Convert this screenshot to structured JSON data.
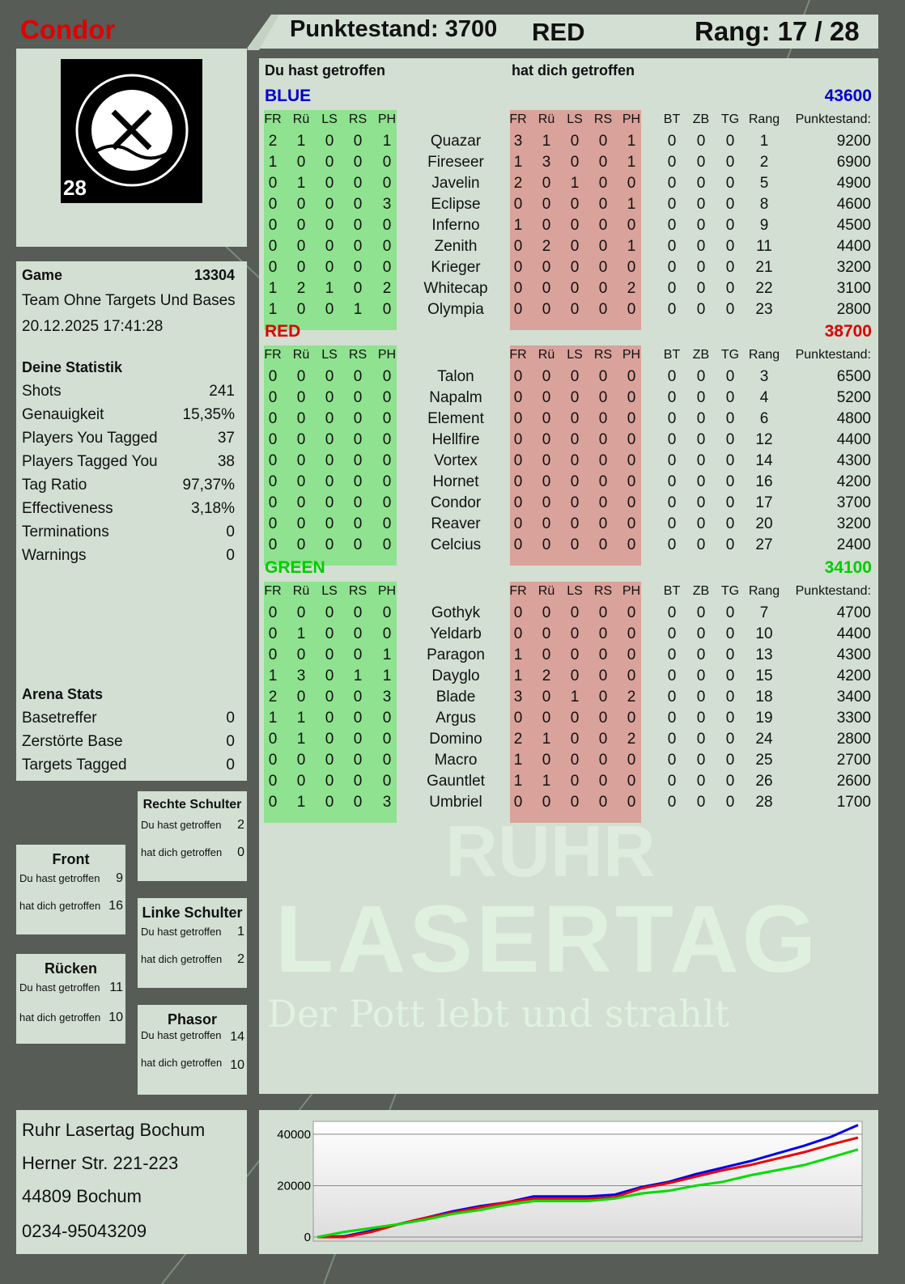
{
  "player": {
    "name": "Condor",
    "score_label": "Punktestand: 3700",
    "team": "RED",
    "rank_label": "Rang: 17 / 28",
    "logo_text": "RUHR LASERTAG",
    "logo_number": "28"
  },
  "colors": {
    "blue": "#0000cc",
    "red": "#dd0000",
    "green": "#00cc00",
    "hit_you": "#8fe28f",
    "hit_by": "#d9a29a"
  },
  "main": {
    "you_hit_label": "Du hast getroffen",
    "hit_you_label": "hat dich getroffen",
    "columns": {
      "fr": "FR",
      "ru": "Rü",
      "ls": "LS",
      "rs": "RS",
      "ph": "PH",
      "bt": "BT",
      "zb": "ZB",
      "tg": "TG",
      "rang": "Rang",
      "points": "Punktestand:"
    },
    "teams": [
      {
        "name": "BLUE",
        "color": "#0000cc",
        "total": "43600",
        "players": [
          [
            "Quazar",
            [
              2,
              1,
              0,
              0,
              1
            ],
            [
              3,
              1,
              0,
              0,
              1
            ],
            [
              0,
              0,
              0
            ],
            1,
            9200
          ],
          [
            "Fireseer",
            [
              1,
              0,
              0,
              0,
              0
            ],
            [
              1,
              3,
              0,
              0,
              1
            ],
            [
              0,
              0,
              0
            ],
            2,
            6900
          ],
          [
            "Javelin",
            [
              0,
              1,
              0,
              0,
              0
            ],
            [
              2,
              0,
              1,
              0,
              0
            ],
            [
              0,
              0,
              0
            ],
            5,
            4900
          ],
          [
            "Eclipse",
            [
              0,
              0,
              0,
              0,
              3
            ],
            [
              0,
              0,
              0,
              0,
              1
            ],
            [
              0,
              0,
              0
            ],
            8,
            4600
          ],
          [
            "Inferno",
            [
              0,
              0,
              0,
              0,
              0
            ],
            [
              1,
              0,
              0,
              0,
              0
            ],
            [
              0,
              0,
              0
            ],
            9,
            4500
          ],
          [
            "Zenith",
            [
              0,
              0,
              0,
              0,
              0
            ],
            [
              0,
              2,
              0,
              0,
              1
            ],
            [
              0,
              0,
              0
            ],
            11,
            4400
          ],
          [
            "Krieger",
            [
              0,
              0,
              0,
              0,
              0
            ],
            [
              0,
              0,
              0,
              0,
              0
            ],
            [
              0,
              0,
              0
            ],
            21,
            3200
          ],
          [
            "Whitecap",
            [
              1,
              2,
              1,
              0,
              2
            ],
            [
              0,
              0,
              0,
              0,
              2
            ],
            [
              0,
              0,
              0
            ],
            22,
            3100
          ],
          [
            "Olympia",
            [
              1,
              0,
              0,
              1,
              0
            ],
            [
              0,
              0,
              0,
              0,
              0
            ],
            [
              0,
              0,
              0
            ],
            23,
            2800
          ]
        ]
      },
      {
        "name": "RED",
        "color": "#dd0000",
        "total": "38700",
        "players": [
          [
            "Talon",
            [
              0,
              0,
              0,
              0,
              0
            ],
            [
              0,
              0,
              0,
              0,
              0
            ],
            [
              0,
              0,
              0
            ],
            3,
            6500
          ],
          [
            "Napalm",
            [
              0,
              0,
              0,
              0,
              0
            ],
            [
              0,
              0,
              0,
              0,
              0
            ],
            [
              0,
              0,
              0
            ],
            4,
            5200
          ],
          [
            "Element",
            [
              0,
              0,
              0,
              0,
              0
            ],
            [
              0,
              0,
              0,
              0,
              0
            ],
            [
              0,
              0,
              0
            ],
            6,
            4800
          ],
          [
            "Hellfire",
            [
              0,
              0,
              0,
              0,
              0
            ],
            [
              0,
              0,
              0,
              0,
              0
            ],
            [
              0,
              0,
              0
            ],
            12,
            4400
          ],
          [
            "Vortex",
            [
              0,
              0,
              0,
              0,
              0
            ],
            [
              0,
              0,
              0,
              0,
              0
            ],
            [
              0,
              0,
              0
            ],
            14,
            4300
          ],
          [
            "Hornet",
            [
              0,
              0,
              0,
              0,
              0
            ],
            [
              0,
              0,
              0,
              0,
              0
            ],
            [
              0,
              0,
              0
            ],
            16,
            4200
          ],
          [
            "Condor",
            [
              0,
              0,
              0,
              0,
              0
            ],
            [
              0,
              0,
              0,
              0,
              0
            ],
            [
              0,
              0,
              0
            ],
            17,
            3700
          ],
          [
            "Reaver",
            [
              0,
              0,
              0,
              0,
              0
            ],
            [
              0,
              0,
              0,
              0,
              0
            ],
            [
              0,
              0,
              0
            ],
            20,
            3200
          ],
          [
            "Celcius",
            [
              0,
              0,
              0,
              0,
              0
            ],
            [
              0,
              0,
              0,
              0,
              0
            ],
            [
              0,
              0,
              0
            ],
            27,
            2400
          ]
        ]
      },
      {
        "name": "GREEN",
        "color": "#00cc00",
        "total": "34100",
        "players": [
          [
            "Gothyk",
            [
              0,
              0,
              0,
              0,
              0
            ],
            [
              0,
              0,
              0,
              0,
              0
            ],
            [
              0,
              0,
              0
            ],
            7,
            4700
          ],
          [
            "Yeldarb",
            [
              0,
              1,
              0,
              0,
              0
            ],
            [
              0,
              0,
              0,
              0,
              0
            ],
            [
              0,
              0,
              0
            ],
            10,
            4400
          ],
          [
            "Paragon",
            [
              0,
              0,
              0,
              0,
              1
            ],
            [
              1,
              0,
              0,
              0,
              0
            ],
            [
              0,
              0,
              0
            ],
            13,
            4300
          ],
          [
            "Dayglo",
            [
              1,
              3,
              0,
              1,
              1
            ],
            [
              1,
              2,
              0,
              0,
              0
            ],
            [
              0,
              0,
              0
            ],
            15,
            4200
          ],
          [
            "Blade",
            [
              2,
              0,
              0,
              0,
              3
            ],
            [
              3,
              0,
              1,
              0,
              2
            ],
            [
              0,
              0,
              0
            ],
            18,
            3400
          ],
          [
            "Argus",
            [
              1,
              1,
              0,
              0,
              0
            ],
            [
              0,
              0,
              0,
              0,
              0
            ],
            [
              0,
              0,
              0
            ],
            19,
            3300
          ],
          [
            "Domino",
            [
              0,
              1,
              0,
              0,
              0
            ],
            [
              2,
              1,
              0,
              0,
              2
            ],
            [
              0,
              0,
              0
            ],
            24,
            2800
          ],
          [
            "Macro",
            [
              0,
              0,
              0,
              0,
              0
            ],
            [
              1,
              0,
              0,
              0,
              0
            ],
            [
              0,
              0,
              0
            ],
            25,
            2700
          ],
          [
            "Gauntlet",
            [
              0,
              0,
              0,
              0,
              0
            ],
            [
              1,
              1,
              0,
              0,
              0
            ],
            [
              0,
              0,
              0
            ],
            26,
            2600
          ],
          [
            "Umbriel",
            [
              0,
              1,
              0,
              0,
              3
            ],
            [
              0,
              0,
              0,
              0,
              0
            ],
            [
              0,
              0,
              0
            ],
            28,
            1700
          ]
        ]
      }
    ]
  },
  "game": {
    "label": "Game",
    "id": "13304",
    "mode": "Team Ohne Targets Und Bases",
    "datetime": "20.12.2025 17:41:28"
  },
  "stats": {
    "title": "Deine Statistik",
    "items": [
      [
        "Shots",
        "241"
      ],
      [
        "Genauigkeit",
        "15,35%"
      ],
      [
        "Players You Tagged",
        "37"
      ],
      [
        "Players Tagged You",
        "38"
      ],
      [
        "Tag Ratio",
        "97,37%"
      ],
      [
        "Effectiveness",
        "3,18%"
      ],
      [
        "Terminations",
        "0"
      ],
      [
        "Warnings",
        "0"
      ]
    ]
  },
  "arena": {
    "title": "Arena Stats",
    "items": [
      [
        "Basetreffer",
        "0"
      ],
      [
        "Zerstörte Base",
        "0"
      ],
      [
        "Targets Tagged",
        "0"
      ]
    ]
  },
  "hits": {
    "you_hit": "Du hast getroffen",
    "hit_you": "hat dich getroffen",
    "front": {
      "title": "Front",
      "a": "9",
      "b": "16"
    },
    "back": {
      "title": "Rücken",
      "a": "11",
      "b": "10"
    },
    "right": {
      "title": "Rechte Schulter",
      "a": "2",
      "b": "0"
    },
    "left": {
      "title": "Linke Schulter",
      "a": "1",
      "b": "2"
    },
    "phasor": {
      "title": "Phasor",
      "a": "14",
      "b": "10"
    }
  },
  "watermark": {
    "line1": "RUHR",
    "line2": "LASERTAG",
    "line3": "Der Pott lebt und strahlt"
  },
  "address": {
    "lines": [
      "Ruhr Lasertag Bochum",
      "Herner Str. 221-223",
      "44809 Bochum",
      "0234-95043209"
    ]
  },
  "chart_data": {
    "type": "line",
    "ylim": [
      0,
      45000
    ],
    "yticks": [
      0,
      20000,
      40000
    ],
    "grid": true,
    "x": [
      0,
      1,
      2,
      3,
      4,
      5,
      6,
      7,
      8,
      9,
      10,
      11,
      12,
      13,
      14,
      15,
      16,
      17,
      18,
      19,
      20
    ],
    "series": [
      {
        "color": "#0000ee",
        "values": [
          0,
          300,
          2500,
          5000,
          7500,
          10000,
          12000,
          13500,
          15800,
          15800,
          15800,
          16500,
          19500,
          21500,
          24500,
          27000,
          29500,
          32500,
          35500,
          39000,
          43600
        ]
      },
      {
        "color": "#ee0000",
        "values": [
          0,
          0,
          2000,
          5000,
          7500,
          9500,
          11500,
          13500,
          15000,
          15000,
          15000,
          15500,
          19000,
          21000,
          23500,
          26000,
          28000,
          30500,
          33000,
          36000,
          38700
        ]
      },
      {
        "color": "#00dd00",
        "values": [
          0,
          2000,
          3500,
          5000,
          6800,
          9000,
          10500,
          12500,
          14000,
          14000,
          14000,
          15000,
          17000,
          18000,
          20000,
          21500,
          24000,
          26000,
          28000,
          31000,
          34100
        ]
      }
    ]
  }
}
